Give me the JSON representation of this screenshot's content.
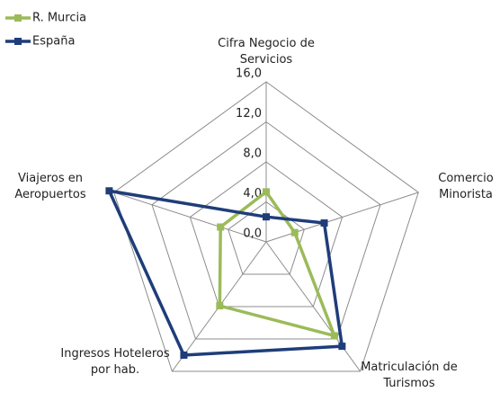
{
  "chart_data": {
    "type": "radar",
    "categories": [
      "Cifra Negocio de Servicios",
      "Comercio Minorista",
      "Matriculación de Turismos",
      "Ingresos Hoteleros por hab.",
      "Viajeros en Aeropuertos"
    ],
    "series": [
      {
        "name": "R. Murcia",
        "color": "#9bbb59",
        "values": [
          5.0,
          3.0,
          11.6,
          7.9,
          4.8
        ]
      },
      {
        "name": "España",
        "color": "#1f3d7a",
        "values": [
          2.5,
          6.1,
          12.9,
          14.0,
          16.5
        ]
      }
    ],
    "ylim": [
      0,
      16
    ],
    "yticks": [
      {
        "value": 0,
        "label": "0,0"
      },
      {
        "value": 4,
        "label": "4,0"
      },
      {
        "value": 8,
        "label": "8,0"
      },
      {
        "value": 12,
        "label": "12,0"
      },
      {
        "value": 16,
        "label": "16,0"
      }
    ],
    "grid": true,
    "legend": "top-left"
  }
}
